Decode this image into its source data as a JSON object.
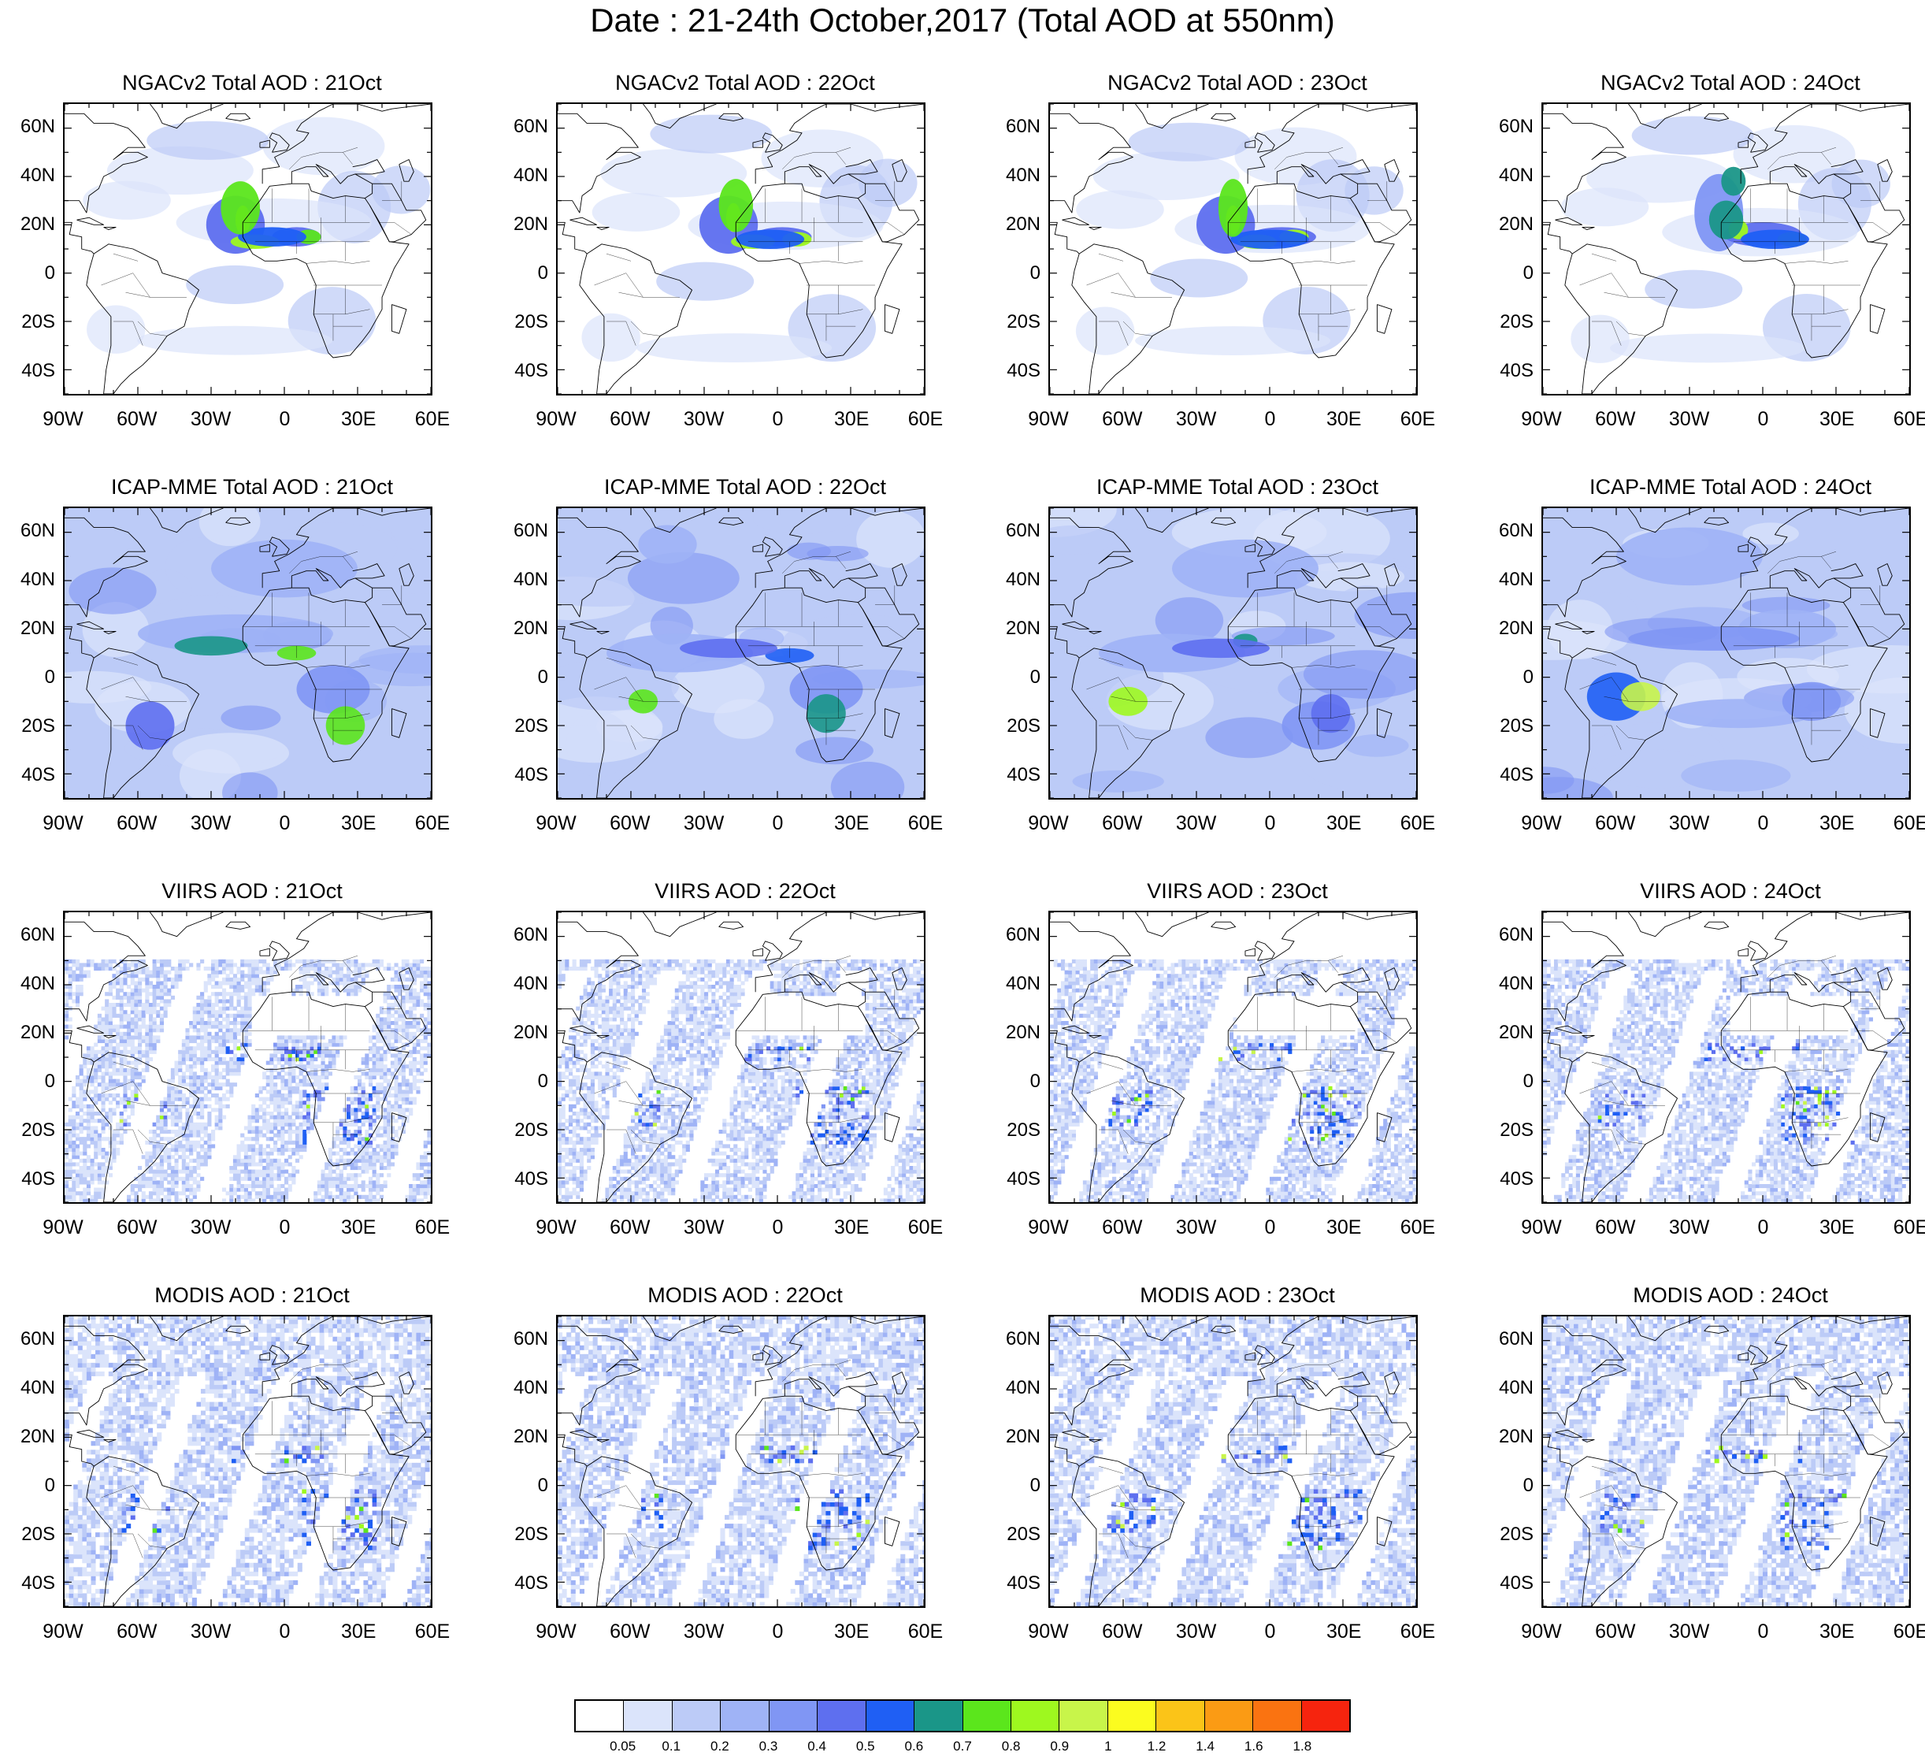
{
  "title": "Date : 21-24th October,2017 (Total AOD at 550nm)",
  "rows": [
    {
      "source": "NGACv2",
      "titles": [
        "NGACv2 Total AOD : 21Oct",
        "NGACv2 Total AOD : 22Oct",
        "NGACv2 Total AOD : 23Oct",
        "NGACv2 Total AOD : 24Oct"
      ]
    },
    {
      "source": "ICAP-MME",
      "titles": [
        "ICAP-MME Total AOD : 21Oct",
        "ICAP-MME Total AOD : 22Oct",
        "ICAP-MME Total AOD : 23Oct",
        "ICAP-MME Total AOD : 24Oct"
      ]
    },
    {
      "source": "VIIRS",
      "titles": [
        "VIIRS AOD : 21Oct",
        "VIIRS AOD : 22Oct",
        "VIIRS AOD : 23Oct",
        "VIIRS AOD : 24Oct"
      ]
    },
    {
      "source": "MODIS",
      "titles": [
        "MODIS AOD : 21Oct",
        "MODIS AOD : 22Oct",
        "MODIS AOD : 23Oct",
        "MODIS AOD : 24Oct"
      ]
    }
  ],
  "axes": {
    "lat_labels": [
      "60N",
      "40N",
      "20N",
      "0",
      "20S",
      "40S"
    ],
    "lon_labels": [
      "90W",
      "60W",
      "30W",
      "0",
      "30E",
      "60E"
    ],
    "lat_range": [
      -50,
      70
    ],
    "lon_range": [
      -90,
      60
    ]
  },
  "colorbar": {
    "colors": [
      "#ffffff",
      "#dbe4fb",
      "#bccbf7",
      "#9fb3f6",
      "#8096f4",
      "#5e6fef",
      "#1f5ff4",
      "#1a9688",
      "#5be61c",
      "#9ef81f",
      "#c8f54a",
      "#fbfc1f",
      "#fbc418",
      "#fb9b14",
      "#fa7311",
      "#f6240e"
    ],
    "labels": [
      "0.05",
      "0.1",
      "0.2",
      "0.3",
      "0.4",
      "0.5",
      "0.6",
      "0.7",
      "0.8",
      "0.9",
      "1",
      "1.2",
      "1.4",
      "1.6",
      "1.8"
    ]
  }
}
